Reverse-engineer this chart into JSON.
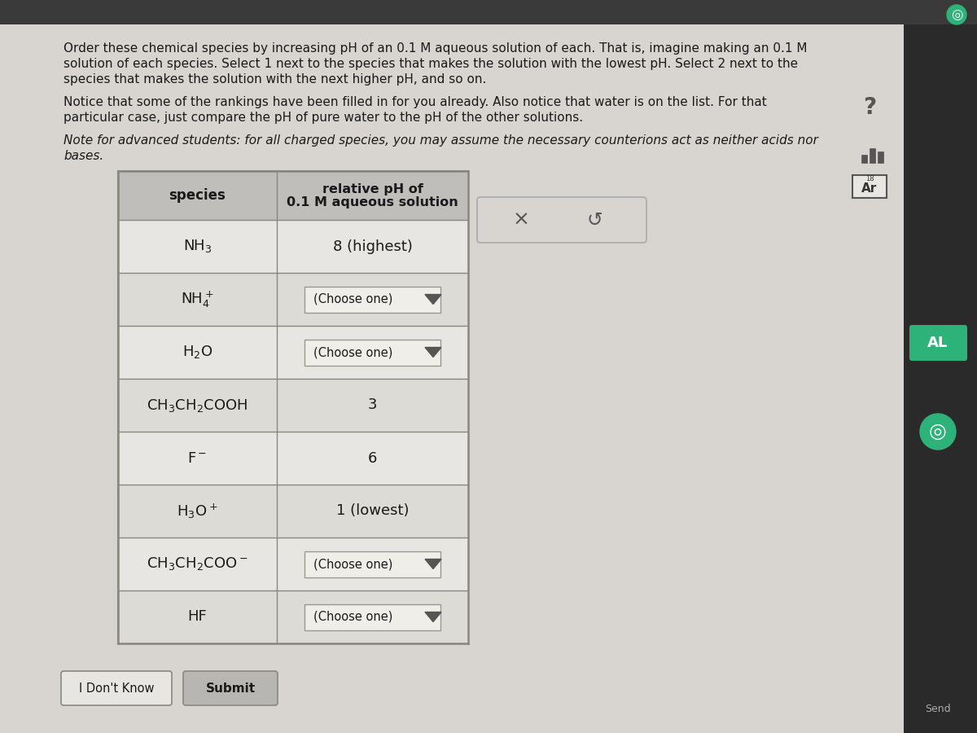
{
  "title_text1": "Order these chemical species by increasing pH of an 0.1 M aqueous solution of each. That is, imagine making an 0.1 M",
  "title_text2": "solution of each species. Select 1 next to the species that makes the solution with the lowest pH. Select 2 next to the",
  "title_text3": "species that makes the solution with the next higher pH, and so on.",
  "notice_text1": "Notice that some of the rankings have been filled in for you already. Also notice that water is on the list. For that",
  "notice_text2": "particular case, just compare the pH of pure water to the pH of the other solutions.",
  "note_text1": "Note for advanced students: for all charged species, you may assume the necessary counterions act as neither acids nor",
  "note_text2": "bases.",
  "col1_header": "species",
  "col2_header_line1": "relative pH of",
  "col2_header_line2": "0.1 M aqueous solution",
  "rows": [
    {
      "species": "NH$_3$",
      "value": "8 (highest)",
      "is_dropdown": false
    },
    {
      "species": "NH$_4^+$",
      "value": "(Choose one)",
      "is_dropdown": true
    },
    {
      "species": "H$_2$O",
      "value": "(Choose one)",
      "is_dropdown": true
    },
    {
      "species": "CH$_3$CH$_2$COOH",
      "value": "3",
      "is_dropdown": false
    },
    {
      "species": "F$^-$",
      "value": "6",
      "is_dropdown": false
    },
    {
      "species": "H$_3$O$^+$",
      "value": "1 (lowest)",
      "is_dropdown": false
    },
    {
      "species": "CH$_3$CH$_2$COO$^-$",
      "value": "(Choose one)",
      "is_dropdown": true
    },
    {
      "species": "HF",
      "value": "(Choose one)",
      "is_dropdown": true
    }
  ],
  "topbar_color": "#3a3a3a",
  "main_bg": "#c8c8c8",
  "content_bg": "#d8d5d0",
  "table_bg_even": "#e8e6e2",
  "table_bg_odd": "#dddbd6",
  "header_bg": "#c0bebb",
  "border_color": "#888880",
  "text_color": "#1a1a1a",
  "button_idk_color": "#e8e6e2",
  "button_submit_color": "#b8b6b2",
  "dropdown_bg": "#f0eee9",
  "dropdown_border": "#999990",
  "sidebar_color": "#2a2a2a",
  "sidebar_btn_green": "#2db37a",
  "xbox_bg": "#d8d5d0",
  "xbox_border": "#aaaaaa",
  "ar_box_border": "#555555",
  "ar_box_bg": "#e8e6e2",
  "question_mark_color": "#555555"
}
